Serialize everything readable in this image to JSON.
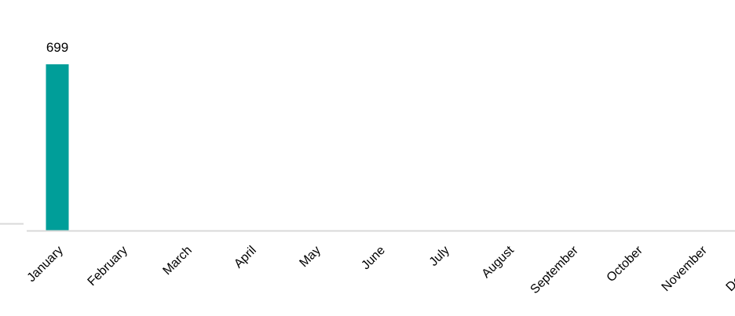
{
  "chart_data": {
    "type": "bar",
    "categories": [
      "January",
      "February",
      "March",
      "April",
      "May",
      "June",
      "July",
      "August",
      "September",
      "October",
      "November",
      "December"
    ],
    "values": [
      699,
      null,
      null,
      null,
      null,
      null,
      null,
      null,
      null,
      null,
      null,
      null
    ],
    "data_labels": [
      "699",
      "",
      "",
      "",
      "",
      "",
      "",
      "",
      "",
      "",
      "",
      ""
    ],
    "title": "",
    "xlabel": "",
    "ylabel": "",
    "ylim": [
      0,
      699
    ],
    "grid": false,
    "legend": "none",
    "bar_color": "#009e99",
    "axis_color": "#d9d9d9",
    "label_color": "#000000"
  }
}
